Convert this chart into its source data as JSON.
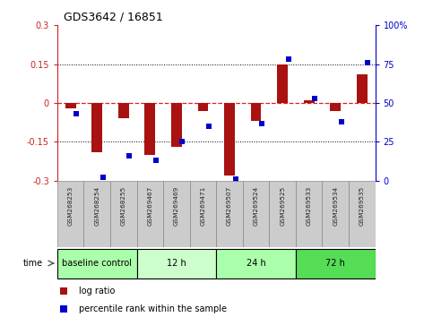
{
  "title": "GDS3642 / 16851",
  "samples": [
    "GSM268253",
    "GSM268254",
    "GSM268255",
    "GSM269467",
    "GSM269469",
    "GSM269471",
    "GSM269507",
    "GSM269524",
    "GSM269525",
    "GSM269533",
    "GSM269534",
    "GSM269535"
  ],
  "log_ratio": [
    -0.02,
    -0.19,
    -0.06,
    -0.2,
    -0.17,
    -0.03,
    -0.28,
    -0.07,
    0.15,
    0.01,
    -0.03,
    0.11
  ],
  "percentile": [
    43,
    2,
    16,
    13,
    25,
    35,
    1,
    37,
    78,
    53,
    38,
    76
  ],
  "groups": [
    {
      "label": "baseline control",
      "start": 0,
      "end": 3,
      "color": "#aaffaa"
    },
    {
      "label": "12 h",
      "start": 3,
      "end": 6,
      "color": "#ccffcc"
    },
    {
      "label": "24 h",
      "start": 6,
      "end": 9,
      "color": "#aaffaa"
    },
    {
      "label": "72 h",
      "start": 9,
      "end": 12,
      "color": "#55dd55"
    }
  ],
  "ylim_left": [
    -0.3,
    0.3
  ],
  "ylim_right": [
    0,
    100
  ],
  "bar_color": "#aa1111",
  "dot_color": "#0000cc",
  "yticks_left": [
    -0.3,
    -0.15,
    0,
    0.15,
    0.3
  ],
  "yticks_right": [
    0,
    25,
    50,
    75,
    100
  ],
  "hline_vals": [
    -0.15,
    0,
    0.15
  ],
  "background_color": "#ffffff",
  "label_log_ratio": "log ratio",
  "label_percentile": "percentile rank within the sample",
  "bar_width": 0.4,
  "dot_size": 22
}
